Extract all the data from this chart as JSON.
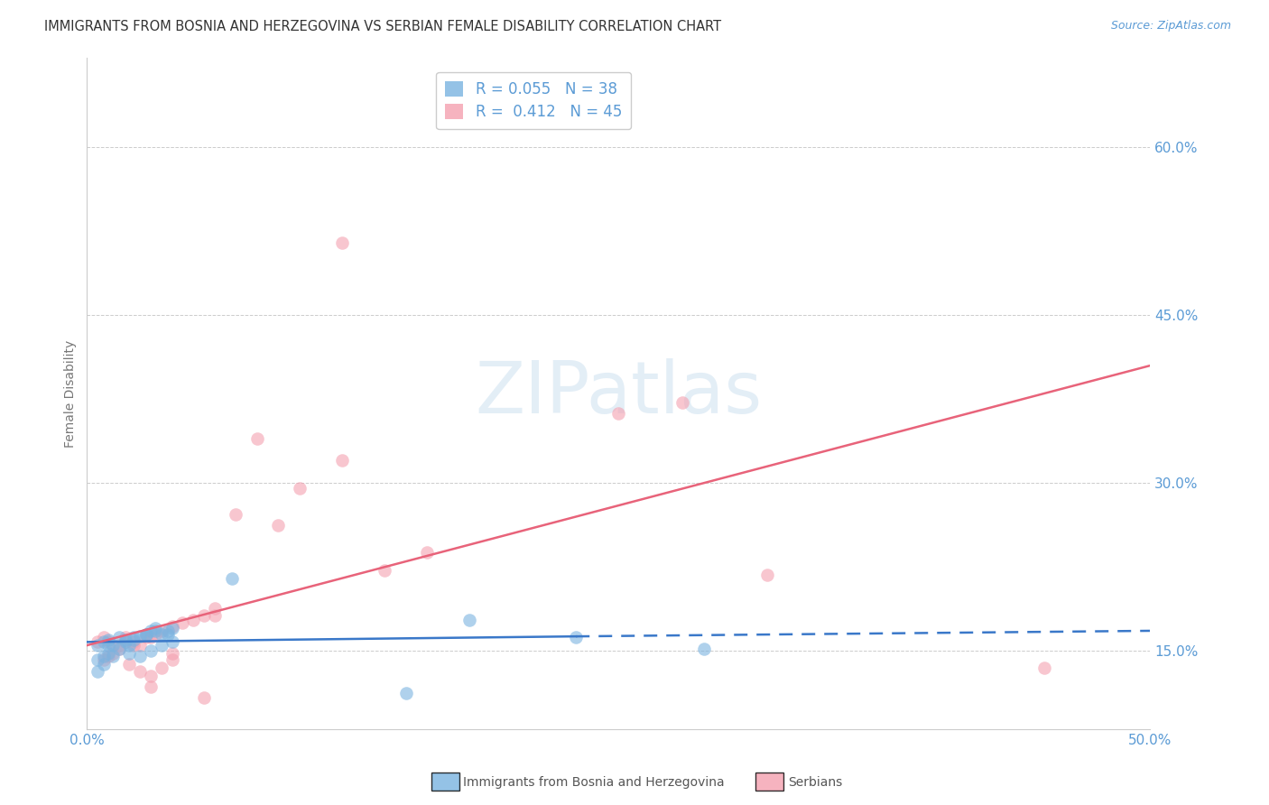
{
  "title": "IMMIGRANTS FROM BOSNIA AND HERZEGOVINA VS SERBIAN FEMALE DISABILITY CORRELATION CHART",
  "source": "Source: ZipAtlas.com",
  "ylabel": "Female Disability",
  "yaxis_labels": [
    "15.0%",
    "30.0%",
    "45.0%",
    "60.0%"
  ],
  "yaxis_values": [
    0.15,
    0.3,
    0.45,
    0.6
  ],
  "xlim": [
    0.0,
    0.5
  ],
  "ylim": [
    0.08,
    0.68
  ],
  "watermark_text": "ZIPatlas",
  "legend_r_labels": [
    "R = 0.055   N = 38",
    "R =  0.412   N = 45"
  ],
  "legend_labels": [
    "Immigrants from Bosnia and Herzegovina",
    "Serbians"
  ],
  "blue_color": "#7ab3e0",
  "pink_color": "#f4a0b0",
  "blue_line_color": "#3a78c9",
  "pink_line_color": "#e8637a",
  "axis_label_color": "#5b9bd5",
  "grid_color": "#cccccc",
  "title_color": "#333333",
  "blue_scatter": [
    [
      0.005,
      0.155
    ],
    [
      0.008,
      0.158
    ],
    [
      0.01,
      0.16
    ],
    [
      0.012,
      0.155
    ],
    [
      0.015,
      0.162
    ],
    [
      0.018,
      0.158
    ],
    [
      0.02,
      0.155
    ],
    [
      0.022,
      0.16
    ],
    [
      0.025,
      0.163
    ],
    [
      0.028,
      0.165
    ],
    [
      0.03,
      0.168
    ],
    [
      0.032,
      0.17
    ],
    [
      0.035,
      0.165
    ],
    [
      0.038,
      0.168
    ],
    [
      0.04,
      0.17
    ],
    [
      0.01,
      0.148
    ],
    [
      0.008,
      0.145
    ],
    [
      0.015,
      0.152
    ],
    [
      0.02,
      0.148
    ],
    [
      0.025,
      0.145
    ],
    [
      0.03,
      0.15
    ],
    [
      0.035,
      0.155
    ],
    [
      0.04,
      0.158
    ],
    [
      0.005,
      0.142
    ],
    [
      0.01,
      0.155
    ],
    [
      0.018,
      0.16
    ],
    [
      0.022,
      0.162
    ],
    [
      0.028,
      0.165
    ],
    [
      0.032,
      0.168
    ],
    [
      0.038,
      0.165
    ],
    [
      0.068,
      0.215
    ],
    [
      0.23,
      0.162
    ],
    [
      0.29,
      0.152
    ],
    [
      0.18,
      0.178
    ],
    [
      0.005,
      0.132
    ],
    [
      0.008,
      0.138
    ],
    [
      0.012,
      0.145
    ],
    [
      0.15,
      0.112
    ]
  ],
  "pink_scatter": [
    [
      0.005,
      0.158
    ],
    [
      0.008,
      0.162
    ],
    [
      0.01,
      0.158
    ],
    [
      0.015,
      0.155
    ],
    [
      0.018,
      0.162
    ],
    [
      0.022,
      0.158
    ],
    [
      0.025,
      0.155
    ],
    [
      0.028,
      0.165
    ],
    [
      0.03,
      0.162
    ],
    [
      0.035,
      0.168
    ],
    [
      0.04,
      0.172
    ],
    [
      0.045,
      0.175
    ],
    [
      0.05,
      0.178
    ],
    [
      0.055,
      0.182
    ],
    [
      0.06,
      0.188
    ],
    [
      0.012,
      0.148
    ],
    [
      0.01,
      0.145
    ],
    [
      0.008,
      0.142
    ],
    [
      0.02,
      0.138
    ],
    [
      0.025,
      0.132
    ],
    [
      0.03,
      0.128
    ],
    [
      0.035,
      0.135
    ],
    [
      0.04,
      0.142
    ],
    [
      0.015,
      0.152
    ],
    [
      0.018,
      0.158
    ],
    [
      0.022,
      0.155
    ],
    [
      0.028,
      0.162
    ],
    [
      0.032,
      0.165
    ],
    [
      0.04,
      0.148
    ],
    [
      0.12,
      0.32
    ],
    [
      0.08,
      0.34
    ],
    [
      0.1,
      0.295
    ],
    [
      0.07,
      0.272
    ],
    [
      0.09,
      0.262
    ],
    [
      0.14,
      0.222
    ],
    [
      0.16,
      0.238
    ],
    [
      0.25,
      0.362
    ],
    [
      0.32,
      0.218
    ],
    [
      0.06,
      0.182
    ],
    [
      0.03,
      0.118
    ],
    [
      0.12,
      0.515
    ],
    [
      0.055,
      0.108
    ],
    [
      0.45,
      0.135
    ],
    [
      0.28,
      0.372
    ],
    [
      0.185,
      0.635
    ]
  ],
  "blue_trendline_solid": {
    "x": [
      0.0,
      0.23
    ],
    "y": [
      0.158,
      0.163
    ]
  },
  "blue_trendline_dashed": {
    "x": [
      0.23,
      0.5
    ],
    "y": [
      0.163,
      0.168
    ]
  },
  "pink_trendline": {
    "x": [
      0.0,
      0.5
    ],
    "y": [
      0.155,
      0.405
    ]
  }
}
